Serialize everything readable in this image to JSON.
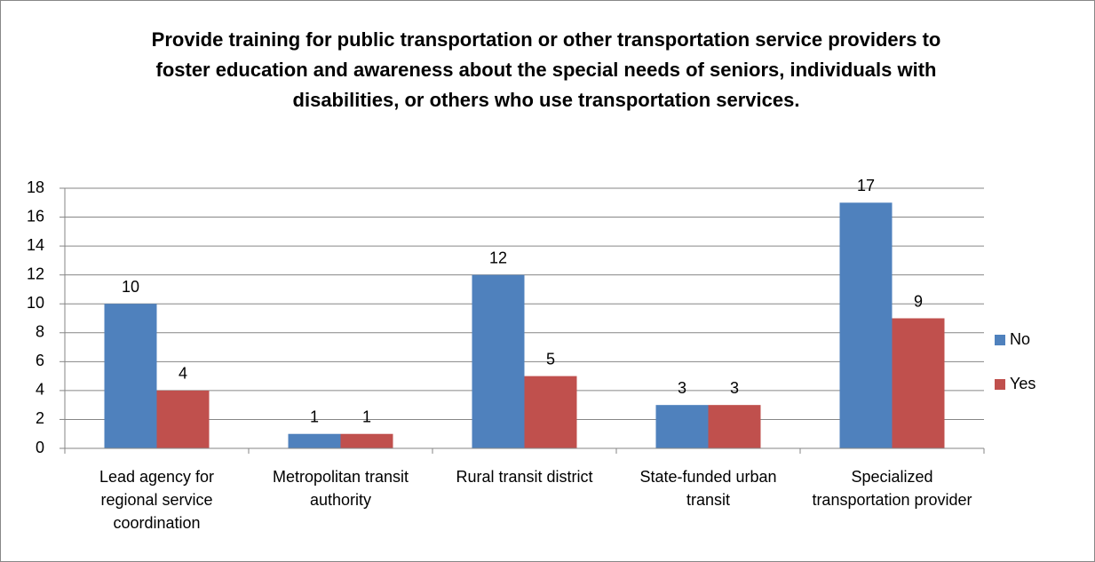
{
  "chart_data": {
    "type": "bar",
    "title": "Provide training for public transportation or other transportation service providers to foster education and awareness about the special needs of seniors, individuals with disabilities, or others who use transportation services.",
    "categories": [
      "Lead agency for regional service coordination",
      "Metropolitan transit authority",
      "Rural transit district",
      "State-funded urban transit",
      "Specialized transportation provider"
    ],
    "series": [
      {
        "name": "No",
        "color": "#4f81bd",
        "values": [
          10,
          1,
          12,
          3,
          17
        ]
      },
      {
        "name": "Yes",
        "color": "#c0504d",
        "values": [
          4,
          1,
          5,
          3,
          9
        ]
      }
    ],
    "ylim": [
      0,
      18
    ],
    "yticks": [
      0,
      2,
      4,
      6,
      8,
      10,
      12,
      14,
      16,
      18
    ],
    "grid": true,
    "legend": "right"
  }
}
